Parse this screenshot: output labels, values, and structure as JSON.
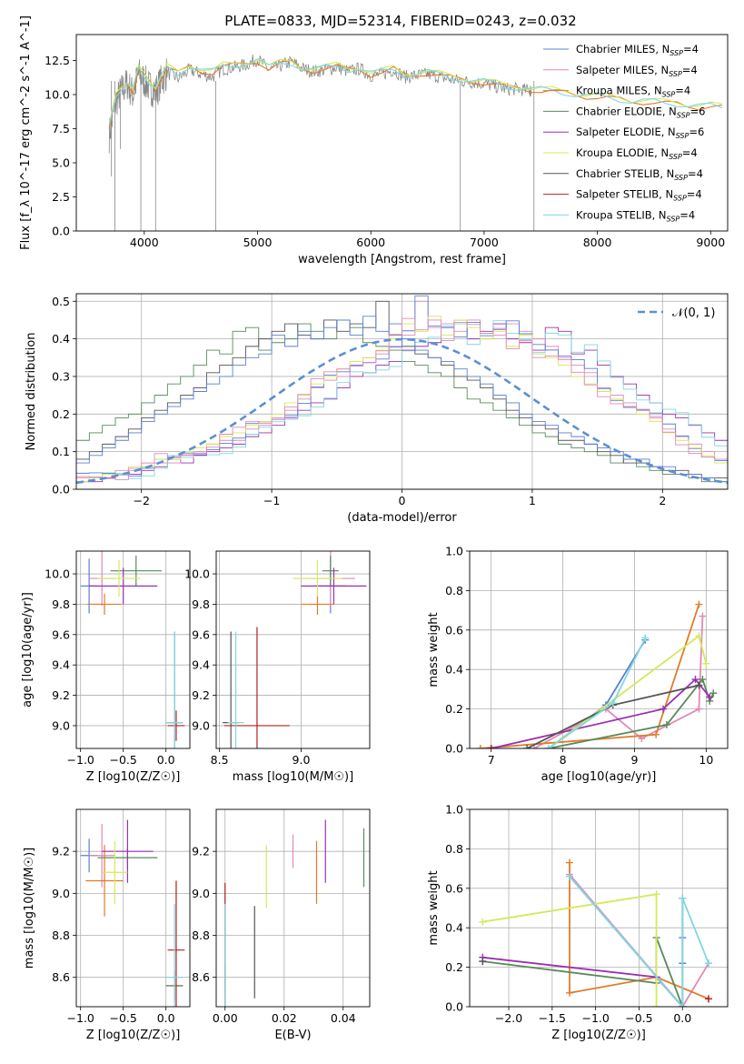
{
  "figure": {
    "title": "PLATE=0833, MJD=52314, FIBERID=0243, z=0.032"
  },
  "series_styles": [
    {
      "name": "Chabrier MILES, N$_{SSP}$=4",
      "label_main": "Chabrier MILES, N",
      "label_sub": "SSP",
      "label_tail": "=4",
      "color": "#5b7fd6"
    },
    {
      "name": "Salpeter MILES, N$_{SSP}$=4",
      "label_main": "Salpeter MILES, N",
      "label_sub": "SSP",
      "label_tail": "=4",
      "color": "#e089b8"
    },
    {
      "name": "Kroupa MILES, N$_{SSP}$=4",
      "label_main": "Kroupa MILES, N",
      "label_sub": "SSP",
      "label_tail": "=4",
      "color": "#e07b2a"
    },
    {
      "name": "Chabrier ELODIE, N$_{SSP}$=6",
      "label_main": "Chabrier ELODIE, N",
      "label_sub": "SSP",
      "label_tail": "=6",
      "color": "#5a8a5a"
    },
    {
      "name": "Salpeter ELODIE, N$_{SSP}$=6",
      "label_main": "Salpeter ELODIE, N",
      "label_sub": "SSP",
      "label_tail": "=6",
      "color": "#9b30b0"
    },
    {
      "name": "Kroupa ELODIE, N$_{SSP}$=4",
      "label_main": "Kroupa ELODIE, N",
      "label_sub": "SSP",
      "label_tail": "=4",
      "color": "#d6e85a"
    },
    {
      "name": "Chabrier STELIB, N$_{SSP}$=4",
      "label_main": "Chabrier STELIB, N",
      "label_sub": "SSP",
      "label_tail": "=4",
      "color": "#555555"
    },
    {
      "name": "Salpeter STELIB, N$_{SSP}$=4",
      "label_main": "Salpeter STELIB, N",
      "label_sub": "SSP",
      "label_tail": "=4",
      "color": "#b22020"
    },
    {
      "name": "Kroupa STELIB, N$_{SSP}$=4",
      "label_main": "Kroupa STELIB, N",
      "label_sub": "SSP",
      "label_tail": "=4",
      "color": "#7fd8e0"
    }
  ],
  "chart_data": [
    {
      "id": "spectrum",
      "type": "line",
      "xlabel": "wavelength [Angstrom, rest frame]",
      "ylabel": "Flux [f_λ 10^-17 erg cm^-2 s^-1 A^-1]",
      "xlim": [
        3400,
        9150
      ],
      "ylim": [
        0,
        14.4
      ],
      "xticks": [
        4000,
        5000,
        6000,
        7000,
        8000,
        9000
      ],
      "yticks": [
        0.0,
        2.5,
        5.0,
        7.5,
        10.0,
        12.5
      ],
      "data_grey_x": [
        3690,
        3750,
        3800,
        3850,
        3900,
        3950,
        4000,
        4050,
        4100,
        4150,
        4200,
        4300,
        4400,
        4500,
        4600,
        4700,
        4800,
        4900,
        5000,
        5100,
        5200,
        5300,
        5400,
        5500,
        5600,
        5700,
        5800,
        5900,
        6000,
        6100,
        6200,
        6300,
        6400,
        6500,
        6600,
        6700,
        6800,
        6900,
        7000,
        7100,
        7200,
        7300,
        7400,
        7420
      ],
      "data_grey_y": [
        7.0,
        9.5,
        10.3,
        10.8,
        10.0,
        11.5,
        11.0,
        10.5,
        10.2,
        11.0,
        11.6,
        11.2,
        11.8,
        11.5,
        11.3,
        11.9,
        12.0,
        12.2,
        12.6,
        11.8,
        12.1,
        12.4,
        11.9,
        11.7,
        11.8,
        12.0,
        11.7,
        11.9,
        11.4,
        11.5,
        11.8,
        11.3,
        11.4,
        11.5,
        11.3,
        11.1,
        11.0,
        10.9,
        10.8,
        10.6,
        10.4,
        10.4,
        10.3,
        10.3
      ],
      "model_x": [
        3690,
        3750,
        3800,
        3850,
        3900,
        3950,
        4000,
        4050,
        4100,
        4150,
        4200,
        4300,
        4400,
        4500,
        4600,
        4700,
        4800,
        4900,
        5000,
        5100,
        5200,
        5300,
        5400,
        5500,
        5600,
        5700,
        5800,
        5900,
        6000,
        6100,
        6200,
        6300,
        6400,
        6500,
        6600,
        6700,
        6800,
        6900,
        7000,
        7100,
        7200,
        7300,
        7400,
        7500,
        7600,
        7700,
        7800,
        7900,
        8000,
        8100,
        8200,
        8300,
        8400,
        8500,
        8600,
        8700,
        8800,
        8900,
        9000,
        9100
      ],
      "model_y": [
        7.5,
        9.8,
        10.5,
        10.9,
        10.3,
        11.8,
        11.3,
        10.9,
        10.5,
        11.2,
        11.9,
        11.5,
        12.1,
        11.8,
        11.6,
        12.0,
        12.1,
        12.3,
        12.5,
        11.9,
        12.2,
        12.3,
        11.9,
        11.8,
        11.9,
        12.0,
        11.8,
        11.9,
        11.5,
        11.6,
        11.8,
        11.4,
        11.5,
        11.6,
        11.4,
        11.2,
        11.1,
        11.0,
        10.9,
        10.7,
        10.5,
        10.5,
        10.4,
        10.3,
        10.2,
        10.1,
        10.0,
        9.9,
        9.8,
        9.7,
        9.6,
        9.5,
        9.5,
        9.4,
        9.3,
        9.3,
        9.2,
        9.1,
        9.1,
        9.0
      ],
      "legend": "top-right"
    },
    {
      "id": "residuals",
      "type": "histogram",
      "xlabel": "(data-model)/error",
      "ylabel": "Normed distribution",
      "xlim": [
        -2.5,
        2.5
      ],
      "ylim": [
        0,
        0.52
      ],
      "xticks": [
        -2,
        -1,
        0,
        1,
        2
      ],
      "yticks": [
        0.0,
        0.1,
        0.2,
        0.3,
        0.4,
        0.5
      ],
      "legend_label": "𝒩(0, 1)",
      "bin_width": 0.1,
      "bins_start": -2.5,
      "histograms": [
        [
          0.02,
          0.02,
          0.03,
          0.04,
          0.04,
          0.05,
          0.06,
          0.08,
          0.07,
          0.09,
          0.1,
          0.11,
          0.12,
          0.14,
          0.15,
          0.17,
          0.19,
          0.21,
          0.23,
          0.24,
          0.27,
          0.3,
          0.31,
          0.33,
          0.34,
          0.37,
          0.38,
          0.39,
          0.43,
          0.45,
          0.4,
          0.42,
          0.44,
          0.4,
          0.39,
          0.37,
          0.43,
          0.42,
          0.36,
          0.37,
          0.33,
          0.3,
          0.28,
          0.25,
          0.23,
          0.2,
          0.19,
          0.17,
          0.15,
          0.13
        ],
        [
          0.03,
          0.03,
          0.04,
          0.05,
          0.05,
          0.06,
          0.07,
          0.07,
          0.09,
          0.1,
          0.12,
          0.13,
          0.13,
          0.16,
          0.17,
          0.19,
          0.21,
          0.24,
          0.27,
          0.29,
          0.3,
          0.33,
          0.35,
          0.36,
          0.38,
          0.41,
          0.5,
          0.43,
          0.44,
          0.42,
          0.45,
          0.4,
          0.41,
          0.44,
          0.42,
          0.4,
          0.38,
          0.35,
          0.33,
          0.31,
          0.27,
          0.25,
          0.23,
          0.21,
          0.19,
          0.16,
          0.14,
          0.12,
          0.1,
          0.08
        ],
        [
          0.02,
          0.03,
          0.04,
          0.04,
          0.06,
          0.06,
          0.08,
          0.08,
          0.1,
          0.11,
          0.12,
          0.14,
          0.15,
          0.17,
          0.18,
          0.2,
          0.23,
          0.25,
          0.28,
          0.3,
          0.32,
          0.34,
          0.35,
          0.37,
          0.4,
          0.44,
          0.42,
          0.46,
          0.41,
          0.45,
          0.43,
          0.4,
          0.42,
          0.38,
          0.41,
          0.36,
          0.35,
          0.33,
          0.3,
          0.28,
          0.26,
          0.24,
          0.22,
          0.2,
          0.18,
          0.15,
          0.13,
          0.11,
          0.09,
          0.07
        ]
      ],
      "normal_mu": 0,
      "normal_sigma": 1
    },
    {
      "id": "age_vs_Z",
      "type": "scatter",
      "xlabel": "Z [log10(Z/Z☉)]",
      "ylabel": "age [log10(age/yr)]",
      "xlim": [
        -1.05,
        0.28
      ],
      "ylim": [
        8.85,
        10.15
      ],
      "xticks": [
        -1.0,
        -0.5,
        0.0
      ],
      "yticks": [
        9.0,
        9.2,
        9.4,
        9.6,
        9.8,
        10.0
      ],
      "points": [
        {
          "s": 0,
          "x": -0.9,
          "y": 9.92,
          "xerr": 0.1,
          "yerr": 0.18
        },
        {
          "s": 1,
          "x": -0.75,
          "y": 9.97,
          "xerr": 0.15,
          "yerr": 0.18
        },
        {
          "s": 2,
          "x": -0.72,
          "y": 9.8,
          "xerr": 0.2,
          "yerr": 0.07
        },
        {
          "s": 3,
          "x": -0.35,
          "y": 10.02,
          "xerr": 0.3,
          "yerr": 0.1
        },
        {
          "s": 4,
          "x": -0.5,
          "y": 9.92,
          "xerr": 0.4,
          "yerr": 0.12
        },
        {
          "s": 5,
          "x": -0.55,
          "y": 9.97,
          "xerr": 0.25,
          "yerr": 0.12
        },
        {
          "s": 6,
          "x": 0.1,
          "y": 9.02,
          "xerr": 0.1,
          "yerr": 0.6
        },
        {
          "s": 7,
          "x": 0.12,
          "y": 9.0,
          "xerr": 0.1,
          "yerr": 0.1
        },
        {
          "s": 8,
          "x": 0.1,
          "y": 9.02,
          "xerr": 0.1,
          "yerr": 0.6
        }
      ]
    },
    {
      "id": "age_vs_mass",
      "type": "scatter",
      "xlabel": "mass [log10(M/M☉)]",
      "ylabel": "",
      "xlim": [
        8.48,
        9.42
      ],
      "ylim": [
        8.85,
        10.15
      ],
      "xticks": [
        8.5,
        9.0
      ],
      "yticks": [
        9.0,
        9.2,
        9.4,
        9.6,
        9.8,
        10.0
      ],
      "points": [
        {
          "s": 0,
          "x": 9.18,
          "y": 9.92,
          "xerr": 0.1,
          "yerr": 0.18
        },
        {
          "s": 1,
          "x": 9.18,
          "y": 9.97,
          "xerr": 0.15,
          "yerr": 0.18
        },
        {
          "s": 2,
          "x": 9.1,
          "y": 9.8,
          "xerr": 0.1,
          "yerr": 0.07
        },
        {
          "s": 3,
          "x": 9.18,
          "y": 10.02,
          "xerr": 0.05,
          "yerr": 0.1
        },
        {
          "s": 4,
          "x": 9.2,
          "y": 9.92,
          "xerr": 0.2,
          "yerr": 0.12
        },
        {
          "s": 5,
          "x": 9.1,
          "y": 9.97,
          "xerr": 0.15,
          "yerr": 0.12
        },
        {
          "s": 6,
          "x": 8.57,
          "y": 9.02,
          "xerr": 0.05,
          "yerr": 0.6
        },
        {
          "s": 7,
          "x": 8.73,
          "y": 9.0,
          "xerr": 0.2,
          "yerr": 0.65
        },
        {
          "s": 8,
          "x": 8.6,
          "y": 9.02,
          "xerr": 0.05,
          "yerr": 0.6
        }
      ]
    },
    {
      "id": "massweight_vs_age",
      "type": "line",
      "xlabel": "age [log10(age/yr)]",
      "ylabel": "mass weight",
      "xlim": [
        6.7,
        10.3
      ],
      "ylim": [
        0,
        1.0
      ],
      "xticks": [
        7,
        8,
        9,
        10
      ],
      "yticks": [
        0.0,
        0.2,
        0.4,
        0.6,
        0.8,
        1.0
      ],
      "series": [
        {
          "s": 0,
          "x": [
            7.8,
            8.6,
            9.15
          ],
          "y": [
            0.0,
            0.22,
            0.55
          ]
        },
        {
          "s": 1,
          "x": [
            7.6,
            8.6,
            9.1,
            9.9,
            9.95
          ],
          "y": [
            0.0,
            0.2,
            0.05,
            0.2,
            0.67
          ]
        },
        {
          "s": 2,
          "x": [
            6.85,
            9.3,
            9.9
          ],
          "y": [
            0.0,
            0.07,
            0.73
          ]
        },
        {
          "s": 3,
          "x": [
            7.8,
            9.45,
            9.95,
            10.05,
            10.1
          ],
          "y": [
            0.0,
            0.12,
            0.35,
            0.24,
            0.28
          ]
        },
        {
          "s": 4,
          "x": [
            7.0,
            9.4,
            9.85,
            10.05
          ],
          "y": [
            0.0,
            0.2,
            0.35,
            0.26
          ]
        },
        {
          "s": 5,
          "x": [
            7.8,
            9.9,
            10.0
          ],
          "y": [
            0.0,
            0.57,
            0.43
          ]
        },
        {
          "s": 6,
          "x": [
            7.5,
            8.7,
            9.9
          ],
          "y": [
            0.0,
            0.22,
            0.32
          ]
        },
        {
          "s": 7,
          "x": [
            7.0
          ],
          "y": [
            0.0
          ]
        },
        {
          "s": 8,
          "x": [
            7.8,
            8.7,
            9.15
          ],
          "y": [
            0.0,
            0.23,
            0.56
          ]
        }
      ]
    },
    {
      "id": "mass_vs_Z",
      "type": "scatter",
      "xlabel": "Z [log10(Z/Z☉)]",
      "ylabel": "mass [log10(M/M☉)]",
      "xlim": [
        -1.05,
        0.28
      ],
      "ylim": [
        8.46,
        9.4
      ],
      "xticks": [
        -1.0,
        -0.5,
        0.0
      ],
      "yticks": [
        8.6,
        8.8,
        9.0,
        9.2
      ],
      "points": [
        {
          "s": 0,
          "x": -0.9,
          "y": 9.18,
          "xerr": 0.1,
          "yerr": 0.08
        },
        {
          "s": 1,
          "x": -0.75,
          "y": 9.18,
          "xerr": 0.15,
          "yerr": 0.15
        },
        {
          "s": 2,
          "x": -0.72,
          "y": 9.06,
          "xerr": 0.22,
          "yerr": 0.17
        },
        {
          "s": 3,
          "x": -0.45,
          "y": 9.17,
          "xerr": 0.35,
          "yerr": 0.05
        },
        {
          "s": 4,
          "x": -0.45,
          "y": 9.2,
          "xerr": 0.3,
          "yerr": 0.15
        },
        {
          "s": 5,
          "x": -0.6,
          "y": 9.1,
          "xerr": 0.15,
          "yerr": 0.15
        },
        {
          "s": 6,
          "x": 0.1,
          "y": 8.56,
          "xerr": 0.1,
          "yerr": 0.07
        },
        {
          "s": 7,
          "x": 0.12,
          "y": 8.73,
          "xerr": 0.1,
          "yerr": 0.33
        },
        {
          "s": 8,
          "x": 0.1,
          "y": 8.6,
          "xerr": 0.1,
          "yerr": 0.35
        }
      ]
    },
    {
      "id": "mass_vs_EBV",
      "type": "scatter",
      "xlabel": "E(B-V)",
      "ylabel": "",
      "xlim": [
        -0.003,
        0.049
      ],
      "ylim": [
        8.46,
        9.4
      ],
      "xticks": [
        0.0,
        0.02,
        0.04
      ],
      "yticks": [
        8.6,
        8.8,
        9.0,
        9.2
      ],
      "points": [
        {
          "s": 0,
          "x": 0.0,
          "y": 8.6,
          "yerr": 0.06
        },
        {
          "s": 1,
          "x": 0.023,
          "y": 9.2,
          "yerr": 0.08
        },
        {
          "s": 2,
          "x": 0.031,
          "y": 9.1,
          "yerr": 0.15
        },
        {
          "s": 3,
          "x": 0.047,
          "y": 9.17,
          "yerr": 0.14
        },
        {
          "s": 4,
          "x": 0.034,
          "y": 9.2,
          "yerr": 0.15
        },
        {
          "s": 5,
          "x": 0.014,
          "y": 9.08,
          "yerr": 0.15
        },
        {
          "s": 6,
          "x": 0.01,
          "y": 8.72,
          "yerr": 0.22
        },
        {
          "s": 7,
          "x": 0.0,
          "y": 8.73,
          "yerr": 0.32
        },
        {
          "s": 8,
          "x": 0.0,
          "y": 8.7,
          "yerr": 0.25
        }
      ]
    },
    {
      "id": "massweight_vs_Z",
      "type": "line",
      "xlabel": "Z [log10(Z/Z☉)]",
      "ylabel": "mass weight",
      "xlim": [
        -2.45,
        0.52
      ],
      "ylim": [
        0,
        1.0
      ],
      "xticks": [
        -2.0,
        -1.5,
        -1.0,
        -0.5,
        0.0
      ],
      "yticks": [
        0.0,
        0.2,
        0.4,
        0.6,
        0.8,
        1.0
      ],
      "series": [
        {
          "s": 0,
          "x": [
            -1.3,
            0.0,
            0.0,
            0.0,
            0.0
          ],
          "y": [
            0.66,
            0.0,
            0.55,
            0.35,
            0.22
          ]
        },
        {
          "s": 1,
          "x": [
            -1.3,
            0.0,
            0.3
          ],
          "y": [
            0.67,
            0.0,
            0.22
          ]
        },
        {
          "s": 2,
          "x": [
            -1.3,
            -1.3,
            -0.3,
            0.3
          ],
          "y": [
            0.73,
            0.07,
            0.15,
            0.04
          ]
        },
        {
          "s": 3,
          "x": [
            -2.3,
            -0.3,
            -0.3,
            0.0
          ],
          "y": [
            0.23,
            0.12,
            0.35,
            0.0
          ]
        },
        {
          "s": 4,
          "x": [
            -2.3,
            -0.3,
            0.0
          ],
          "y": [
            0.25,
            0.15,
            0.0
          ]
        },
        {
          "s": 5,
          "x": [
            -2.3,
            -0.3,
            -0.3
          ],
          "y": [
            0.43,
            0.57,
            0.0
          ]
        },
        {
          "s": 6,
          "x": [
            -2.3
          ],
          "y": [
            0.23
          ]
        },
        {
          "s": 7,
          "x": [
            0.3
          ],
          "y": [
            0.04
          ]
        },
        {
          "s": 8,
          "x": [
            -1.3,
            0.0,
            0.0,
            0.3
          ],
          "y": [
            0.66,
            0.0,
            0.55,
            0.22
          ]
        }
      ]
    }
  ]
}
